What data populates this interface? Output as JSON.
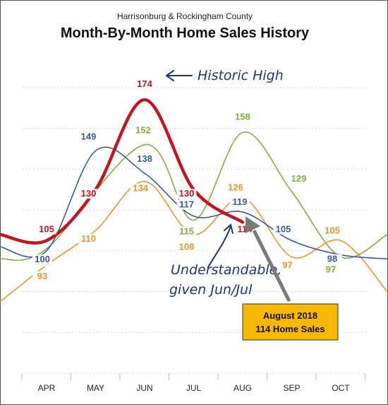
{
  "header": {
    "subtitle": "Harrisonburg & Rockingham County",
    "title": "Month-By-Month Home Sales History"
  },
  "annotations": {
    "historic_high": "Historic High",
    "understandable_line1": "Understandable,",
    "understandable_line2": "given Jun/Jul",
    "callout_line1": "August 2018",
    "callout_line2": "114 Home Sales"
  },
  "colors": {
    "red": "#c0161f",
    "blue": "#3a5a9c",
    "green": "#7fae3e",
    "orange": "#f0922e",
    "callout_fill": "#f6b800",
    "arrow_gray": "#7a7a7a"
  },
  "chart_data": {
    "type": "line",
    "title": "Month-By-Month Home Sales History",
    "subtitle": "Harrisonburg & Rockingham County",
    "categories": [
      "APR",
      "MAY",
      "JUN",
      "JUL",
      "AUG",
      "SEP",
      "OCT"
    ],
    "ylim": [
      40,
      190
    ],
    "grid": true,
    "series": [
      {
        "color": "red",
        "values": [
          105,
          130,
          174,
          130,
          114,
          null,
          null
        ]
      },
      {
        "color": "blue",
        "values": [
          100,
          149,
          138,
          117,
          119,
          105,
          98
        ]
      },
      {
        "color": "green",
        "values": [
          101,
          null,
          152,
          115,
          158,
          129,
          97
        ]
      },
      {
        "color": "orange",
        "values": [
          93,
          110,
          134,
          108,
          126,
          97,
          105
        ]
      }
    ]
  }
}
